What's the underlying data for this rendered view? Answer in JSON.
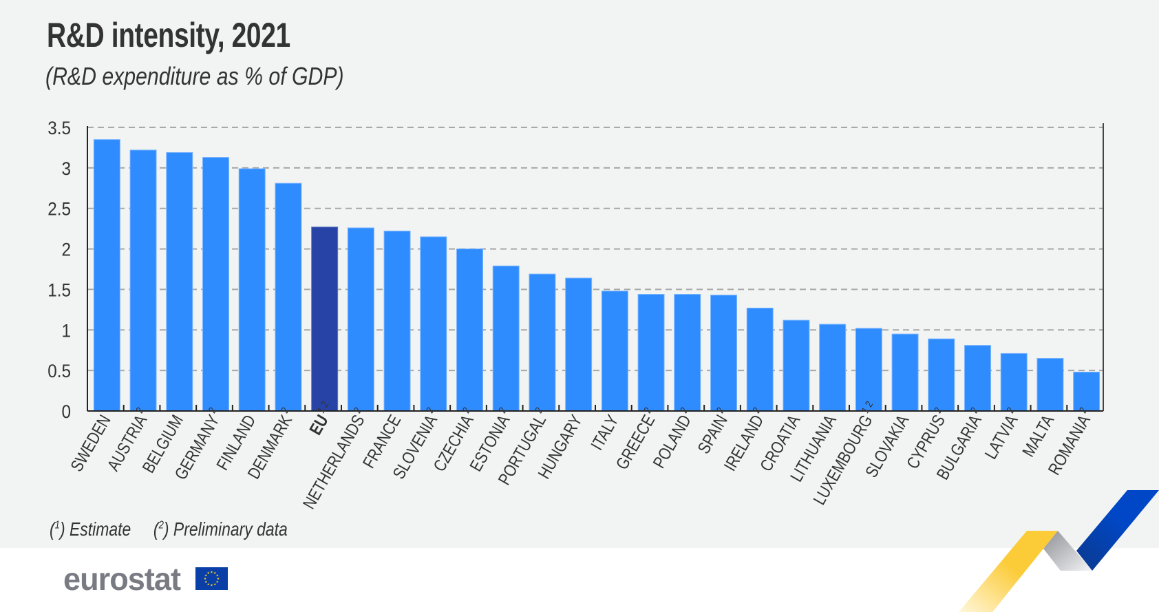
{
  "header": {
    "title": "R&D intensity, 2021",
    "subtitle": "(R&D expenditure as % of GDP)"
  },
  "legend": {
    "notes": [
      {
        "marker": "1",
        "text": "Estimate"
      },
      {
        "marker": "2",
        "text": "Preliminary data"
      }
    ]
  },
  "branding": {
    "logo_text": "eurostat",
    "colors": {
      "yellow": "#FCCB38",
      "grey": "#9A9CA2",
      "blue": "#0047C8"
    }
  },
  "colors": {
    "bar": "#2E8CFF",
    "bar_highlight": "#2743A5",
    "background": "#F2F4F3"
  },
  "chart_data": {
    "type": "bar",
    "title": "R&D intensity, 2021",
    "subtitle": "(R&D expenditure as % of GDP)",
    "xlabel": "",
    "ylabel": "",
    "ylim": [
      0,
      3.5
    ],
    "yticks": [
      0,
      0.5,
      1,
      1.5,
      2,
      2.5,
      3,
      3.5
    ],
    "ytick_labels": [
      "0",
      "0.5",
      "1",
      "1.5",
      "2",
      "2.5",
      "3",
      "3.5"
    ],
    "grid": true,
    "grid_style": "dashed",
    "categories": [
      "SWEDEN",
      "AUSTRIA",
      "BELGIUM",
      "GERMANY",
      "FINLAND",
      "DENMARK",
      "EU",
      "NETHERLANDS",
      "FRANCE",
      "SLOVENIA",
      "CZECHIA",
      "ESTONIA",
      "PORTUGAL",
      "HUNGARY",
      "ITALY",
      "GREECE",
      "POLAND",
      "SPAIN",
      "IRELAND",
      "CROATIA",
      "LITHUANIA",
      "LUXEMBOURG",
      "SLOVAKIA",
      "CYPRUS",
      "BULGARIA",
      "LATVIA",
      "MALTA",
      "ROMANIA"
    ],
    "footnotes": [
      "",
      "2",
      "",
      "2",
      "",
      "2",
      "1 2",
      "2",
      "",
      "2",
      "2",
      "2",
      "2",
      "",
      "",
      "2",
      "2",
      "2",
      "2",
      "",
      "",
      "1 2",
      "",
      "2",
      "2",
      "2",
      "",
      "2"
    ],
    "highlight": [
      "EU"
    ],
    "values": [
      3.35,
      3.22,
      3.19,
      3.13,
      2.99,
      2.81,
      2.27,
      2.26,
      2.22,
      2.15,
      2.0,
      1.79,
      1.69,
      1.64,
      1.48,
      1.44,
      1.44,
      1.43,
      1.27,
      1.12,
      1.07,
      1.02,
      0.95,
      0.89,
      0.81,
      0.71,
      0.65,
      0.48
    ],
    "legend": [
      "(1) Estimate",
      "(2) Preliminary data"
    ]
  }
}
